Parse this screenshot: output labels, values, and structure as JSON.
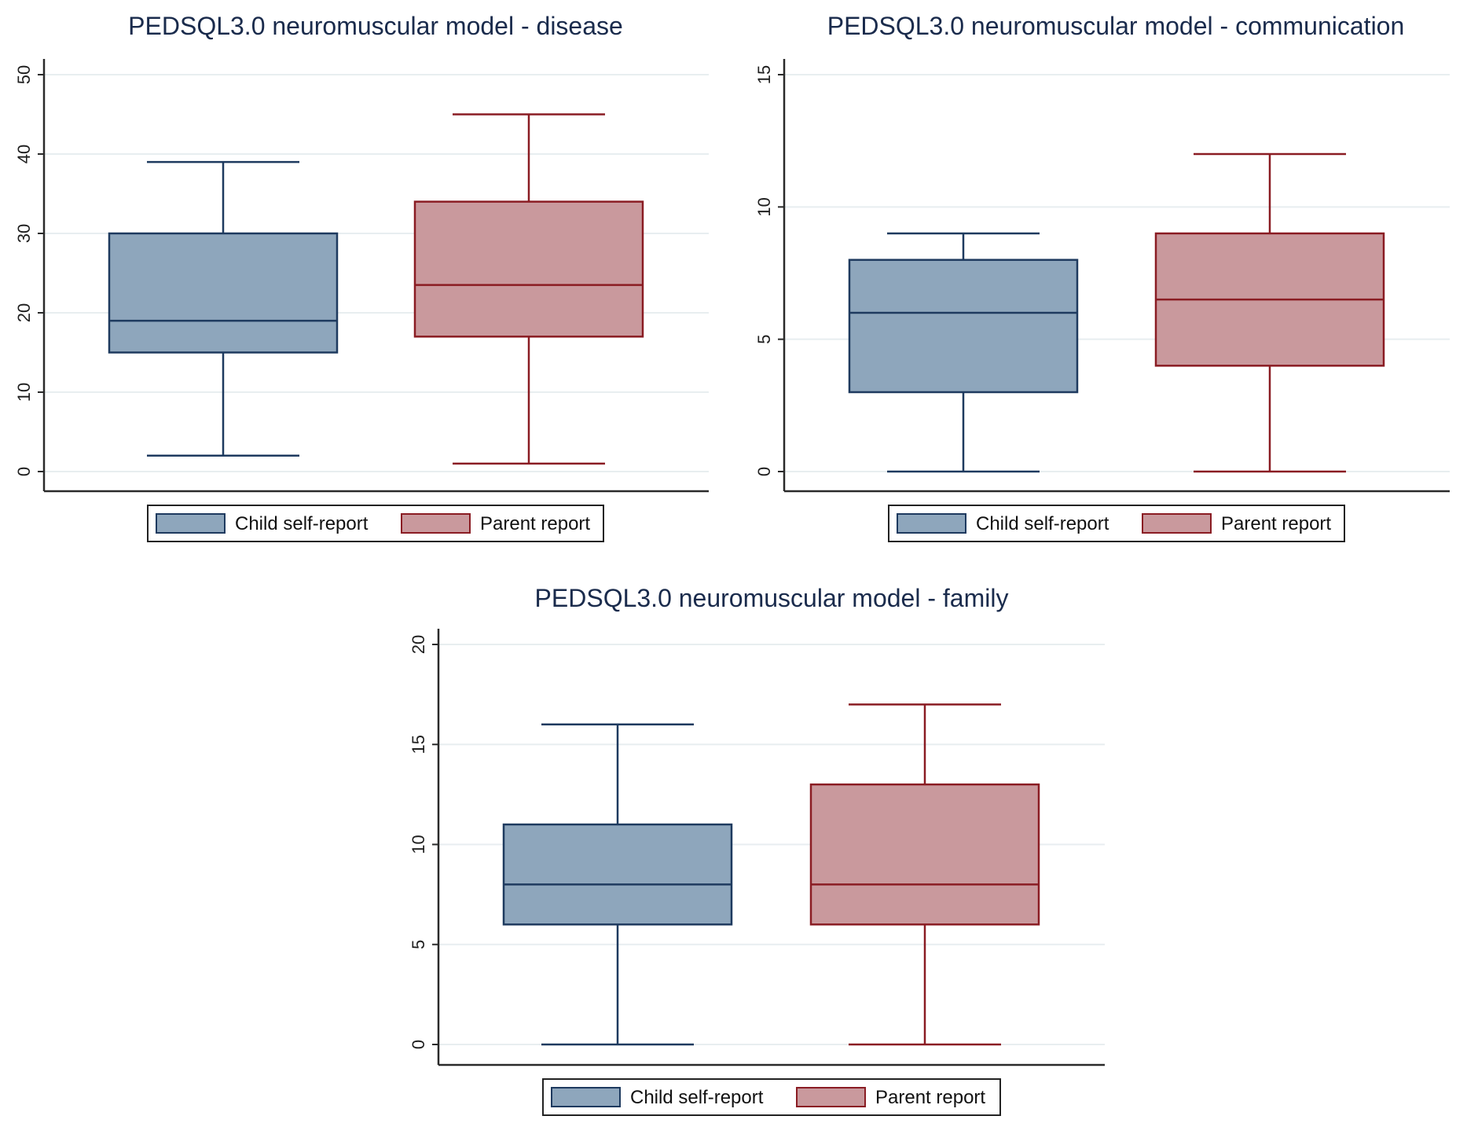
{
  "colors": {
    "child_fill": "#8EA6BC",
    "child_stroke": "#1E3A5F",
    "parent_fill": "#C9999D",
    "parent_stroke": "#8A1C23",
    "grid": "#E8EEF0",
    "axis": "#2A2A2A"
  },
  "chart_data": [
    {
      "type": "box",
      "title": "PEDSQL3.0 neuromuscular model - disease",
      "ylim": [
        0,
        50
      ],
      "yticks": [
        0,
        10,
        20,
        30,
        40,
        50
      ],
      "legend": [
        "Child self-report",
        "Parent report"
      ],
      "series": [
        {
          "name": "Child self-report",
          "min": 2,
          "q1": 15,
          "median": 19,
          "q3": 30,
          "max": 39
        },
        {
          "name": "Parent report",
          "min": 1,
          "q1": 17,
          "median": 23.5,
          "q3": 34,
          "max": 45
        }
      ]
    },
    {
      "type": "box",
      "title": "PEDSQL3.0 neuromuscular model - communication",
      "ylim": [
        0,
        15
      ],
      "yticks": [
        0,
        5,
        10,
        15
      ],
      "legend": [
        "Child self-report",
        "Parent report"
      ],
      "series": [
        {
          "name": "Child self-report",
          "min": 0,
          "q1": 3,
          "median": 6,
          "q3": 8,
          "max": 9
        },
        {
          "name": "Parent report",
          "min": 0,
          "q1": 4,
          "median": 6.5,
          "q3": 9,
          "max": 12
        }
      ]
    },
    {
      "type": "box",
      "title": "PEDSQL3.0 neuromuscular model - family",
      "ylim": [
        0,
        20
      ],
      "yticks": [
        0,
        5,
        10,
        15,
        20
      ],
      "legend": [
        "Child self-report",
        "Parent report"
      ],
      "series": [
        {
          "name": "Child self-report",
          "min": 0,
          "q1": 6,
          "median": 8,
          "q3": 11,
          "max": 16
        },
        {
          "name": "Parent report",
          "min": 0,
          "q1": 6,
          "median": 8,
          "q3": 13,
          "max": 17
        }
      ]
    }
  ]
}
